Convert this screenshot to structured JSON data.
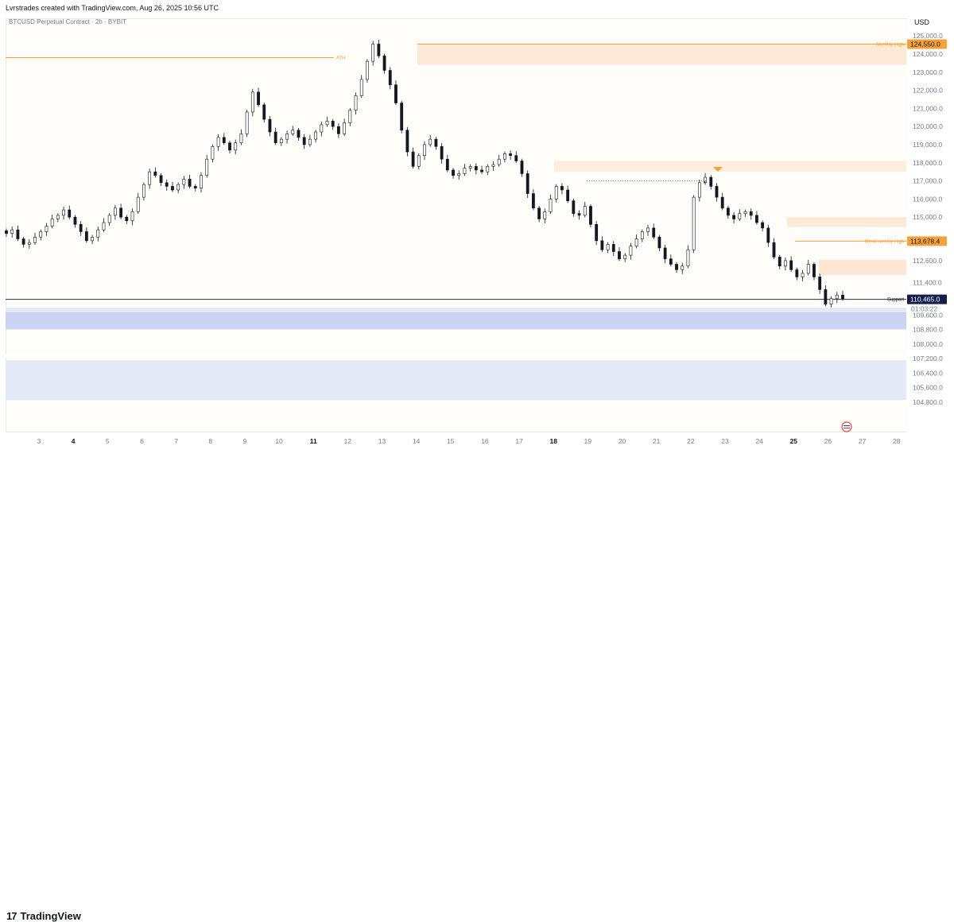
{
  "attribution": "Lvrstrades created with TradingView.com, Aug 26, 2025 10:56 UTC",
  "symbol_title": "BTCUSD Perpetual Contract · 2h · BYBIT",
  "currency": "USD",
  "brand": "TradingView",
  "colors": {
    "zone_orange": "#fbd9b8",
    "accent_orange": "#f7a13a",
    "support_zone": "#c3cdf2",
    "support_zone_light": "#e4e9f7",
    "navy": "#131f4a",
    "candle": "#131722"
  },
  "price_ticks": [
    "125,000.0",
    "124,000.0",
    "123,000.0",
    "122,000.0",
    "121,000.0",
    "120,000.0",
    "119,000.0",
    "118,000.0",
    "117,000.0",
    "116,000.0",
    "115,000.0",
    "112,600.0",
    "111,400.0",
    "109,600.0",
    "108,800.0",
    "108,000.0",
    "107,200.0",
    "106,400.0",
    "105,600.0",
    "104,800.0"
  ],
  "time_ticks": [
    {
      "label": "3",
      "bold": false
    },
    {
      "label": "4",
      "bold": true
    },
    {
      "label": "5",
      "bold": false
    },
    {
      "label": "6",
      "bold": false
    },
    {
      "label": "7",
      "bold": false
    },
    {
      "label": "8",
      "bold": false
    },
    {
      "label": "9",
      "bold": false
    },
    {
      "label": "10",
      "bold": false
    },
    {
      "label": "11",
      "bold": true
    },
    {
      "label": "12",
      "bold": false
    },
    {
      "label": "13",
      "bold": false
    },
    {
      "label": "14",
      "bold": false
    },
    {
      "label": "15",
      "bold": false
    },
    {
      "label": "16",
      "bold": false
    },
    {
      "label": "17",
      "bold": false
    },
    {
      "label": "18",
      "bold": true
    },
    {
      "label": "19",
      "bold": false
    },
    {
      "label": "20",
      "bold": false
    },
    {
      "label": "21",
      "bold": false
    },
    {
      "label": "22",
      "bold": false
    },
    {
      "label": "23",
      "bold": false
    },
    {
      "label": "24",
      "bold": false
    },
    {
      "label": "25",
      "bold": true
    },
    {
      "label": "26",
      "bold": false
    },
    {
      "label": "27",
      "bold": false
    },
    {
      "label": "28",
      "bold": false
    }
  ],
  "annotations": {
    "ath": "ATH",
    "monthly_high": "Monthly High",
    "weak_weekly_high": "Weak weekly High",
    "support": "Support",
    "x_mark": "x"
  },
  "price_labels": {
    "monthly_high": "124,550.0",
    "weak_weekly_high": "113,678.4",
    "current": "110,465.0",
    "countdown": "01:03:22"
  },
  "chart_data": {
    "type": "candlestick",
    "symbol": "BTCUSD Perpetual Contract",
    "interval": "2h",
    "exchange": "BYBIT",
    "ylim": [
      104400,
      125300
    ],
    "x_labels": [
      "3",
      "4",
      "5",
      "6",
      "7",
      "8",
      "9",
      "10",
      "11",
      "12",
      "13",
      "14",
      "15",
      "16",
      "17",
      "18",
      "19",
      "20",
      "21",
      "22",
      "23",
      "24",
      "25",
      "26",
      "27",
      "28"
    ],
    "levels": {
      "ath": 123800,
      "monthly_high": 124550,
      "weak_weekly_high": 113678.4,
      "support": 110465,
      "current": 110465
    },
    "zones": [
      {
        "name": "Monthly High zone",
        "from": 123400,
        "to": 124550
      },
      {
        "name": "Supply zone",
        "from": 117500,
        "to": 118100
      },
      {
        "name": "Supply zone",
        "from": 114450,
        "to": 115000
      },
      {
        "name": "Supply zone",
        "from": 111800,
        "to": 112650
      },
      {
        "name": "Support zone",
        "from": 108800,
        "to": 109950
      },
      {
        "name": "Support zone (lower)",
        "from": 104900,
        "to": 107100
      }
    ],
    "closes": [
      114100,
      114300,
      113800,
      113500,
      113600,
      113900,
      114200,
      114500,
      114900,
      115100,
      115400,
      115000,
      114600,
      114200,
      113700,
      113900,
      114300,
      114700,
      115100,
      115500,
      115000,
      114800,
      115300,
      116100,
      116800,
      117500,
      117300,
      116900,
      116700,
      116500,
      116800,
      117100,
      116700,
      116600,
      117300,
      118200,
      118900,
      119400,
      119100,
      118700,
      119100,
      119600,
      120800,
      121900,
      121200,
      120400,
      119700,
      119100,
      119300,
      119600,
      119800,
      119400,
      119000,
      119300,
      119700,
      120100,
      120300,
      120000,
      119600,
      120200,
      120900,
      121700,
      122600,
      123600,
      124550,
      123900,
      123100,
      122300,
      121300,
      119800,
      118600,
      117800,
      118400,
      119000,
      119300,
      118900,
      118200,
      117600,
      117300,
      117400,
      117700,
      117800,
      117600,
      117500,
      117800,
      117900,
      118200,
      118500,
      118400,
      118100,
      117400,
      116300,
      115500,
      114900,
      115300,
      116000,
      116700,
      116500,
      115900,
      115200,
      115100,
      115600,
      114600,
      113700,
      113200,
      113500,
      113100,
      112700,
      112900,
      113400,
      113800,
      114200,
      114400,
      113900,
      113300,
      112700,
      112400,
      112100,
      112300,
      113200,
      116100,
      116900,
      117200,
      116700,
      116100,
      115500,
      115100,
      114900,
      115200,
      115300,
      115100,
      114700,
      114400,
      113600,
      112800,
      112300,
      112600,
      112100,
      111700,
      111900,
      112400,
      111700,
      111000,
      110200,
      110500,
      110700,
      110500
    ]
  }
}
